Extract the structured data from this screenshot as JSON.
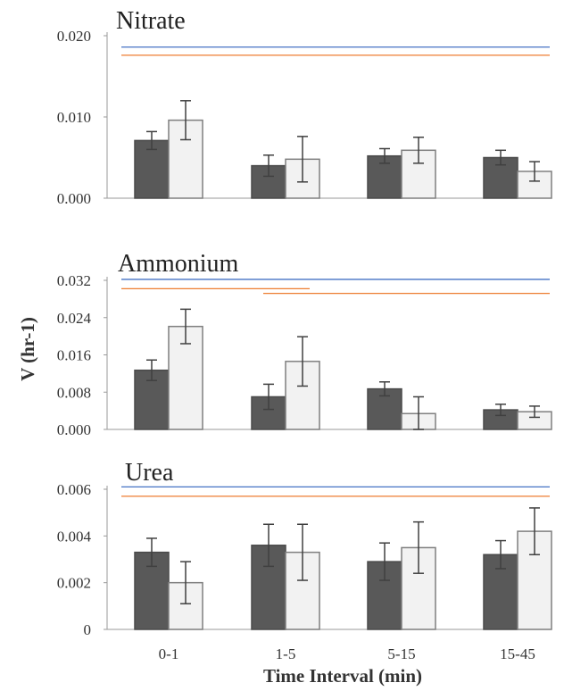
{
  "xlabel": "Time Interval (min)",
  "ylabel": "V (hr-1)",
  "categories": [
    "0-1",
    "1-5",
    "5-15",
    "15-45"
  ],
  "colors": {
    "series_a_fill": "#595959",
    "series_a_stroke": "#4a4a4a",
    "series_b_fill": "#f2f2f2",
    "series_b_stroke": "#7f7f7f",
    "line_blue": "#4472c4",
    "line_orange": "#ed7d31",
    "error_bar": "#404040"
  },
  "chart_data": [
    {
      "type": "bar",
      "title": "Nitrate",
      "categories": [
        "0-1",
        "1-5",
        "5-15",
        "15-45"
      ],
      "ylim": [
        0,
        0.02
      ],
      "yticks": [
        "0.000",
        "0.010",
        "0.020"
      ],
      "series": [
        {
          "values": [
            0.0071,
            0.004,
            0.0052,
            0.005
          ],
          "errors": [
            0.0011,
            0.0013,
            0.0009,
            0.0009
          ]
        },
        {
          "values": [
            0.0096,
            0.0048,
            0.0059,
            0.0033
          ],
          "errors": [
            0.0024,
            0.0028,
            0.0016,
            0.0012
          ]
        }
      ],
      "significance_lines": [
        {
          "color": "blue",
          "from": "0-1",
          "to": "15-45",
          "y": 0.0186
        },
        {
          "color": "orange",
          "from": "0-1",
          "to": "15-45",
          "y": 0.0176
        }
      ]
    },
    {
      "type": "bar",
      "title": "Ammonium",
      "categories": [
        "0-1",
        "1-5",
        "5-15",
        "15-45"
      ],
      "ylim": [
        0,
        0.032
      ],
      "yticks": [
        "0.000",
        "0.008",
        "0.016",
        "0.024",
        "0.032"
      ],
      "series": [
        {
          "values": [
            0.0127,
            0.007,
            0.0087,
            0.0042
          ],
          "errors": [
            0.0022,
            0.0027,
            0.0015,
            0.0012
          ]
        },
        {
          "values": [
            0.0221,
            0.0146,
            0.0034,
            0.0038
          ],
          "errors": [
            0.0037,
            0.0053,
            0.0036,
            0.0012
          ]
        }
      ],
      "significance_lines": [
        {
          "color": "blue",
          "from": "0-1",
          "to": "15-45",
          "y": 0.0322
        },
        {
          "color": "orange",
          "from": "0-1",
          "to": "1-5",
          "y": 0.0302
        },
        {
          "color": "orange",
          "from": "1-5",
          "to": "15-45",
          "y": 0.0292
        }
      ]
    },
    {
      "type": "bar",
      "title": "Urea",
      "categories": [
        "0-1",
        "1-5",
        "5-15",
        "15-45"
      ],
      "ylim": [
        0,
        0.006
      ],
      "yticks": [
        "0",
        "0.002",
        "0.004",
        "0.006"
      ],
      "series": [
        {
          "values": [
            0.0033,
            0.0036,
            0.0029,
            0.0032
          ],
          "errors": [
            0.0006,
            0.0009,
            0.0008,
            0.0006
          ]
        },
        {
          "values": [
            0.002,
            0.0033,
            0.0035,
            0.0042
          ],
          "errors": [
            0.0009,
            0.0012,
            0.0011,
            0.001
          ]
        }
      ],
      "significance_lines": [
        {
          "color": "blue",
          "from": "0-1",
          "to": "15-45",
          "y": 0.0061
        },
        {
          "color": "orange",
          "from": "0-1",
          "to": "15-45",
          "y": 0.0057
        }
      ]
    }
  ]
}
